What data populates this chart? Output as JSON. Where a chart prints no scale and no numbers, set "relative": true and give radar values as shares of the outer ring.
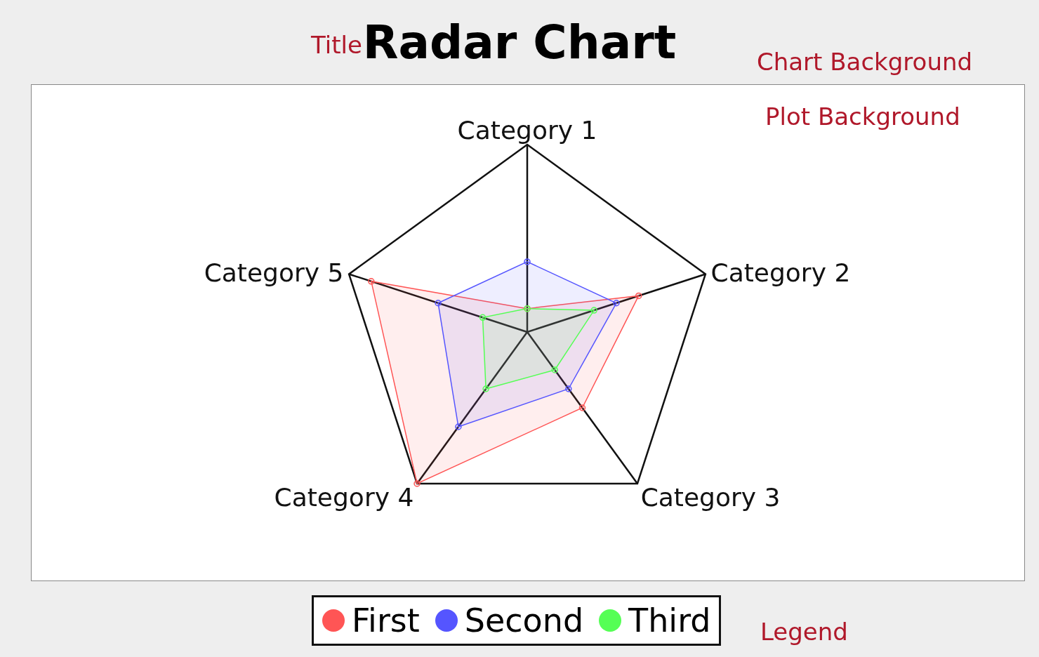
{
  "chart_data": {
    "type": "radar",
    "title": "Radar Chart",
    "categories": [
      "Category 1",
      "Category 2",
      "Category 3",
      "Category 4",
      "Category 5"
    ],
    "relative": true,
    "series": [
      {
        "name": "First",
        "color": "#ff5555",
        "values": [
          0.125,
          0.625,
          0.5,
          1,
          0.875
        ]
      },
      {
        "name": "Second",
        "color": "#5555ff",
        "values": [
          0.375,
          0.5,
          0.375,
          0.625,
          0.5
        ]
      },
      {
        "name": "Third",
        "color": "#55ff55",
        "values": [
          0.125,
          0.375,
          0.25,
          0.375,
          0.25
        ]
      }
    ],
    "marker": "circle",
    "legend": "bottom",
    "annotations": [
      "Title",
      "Chart Background",
      "Plot Background",
      "Legend"
    ]
  }
}
